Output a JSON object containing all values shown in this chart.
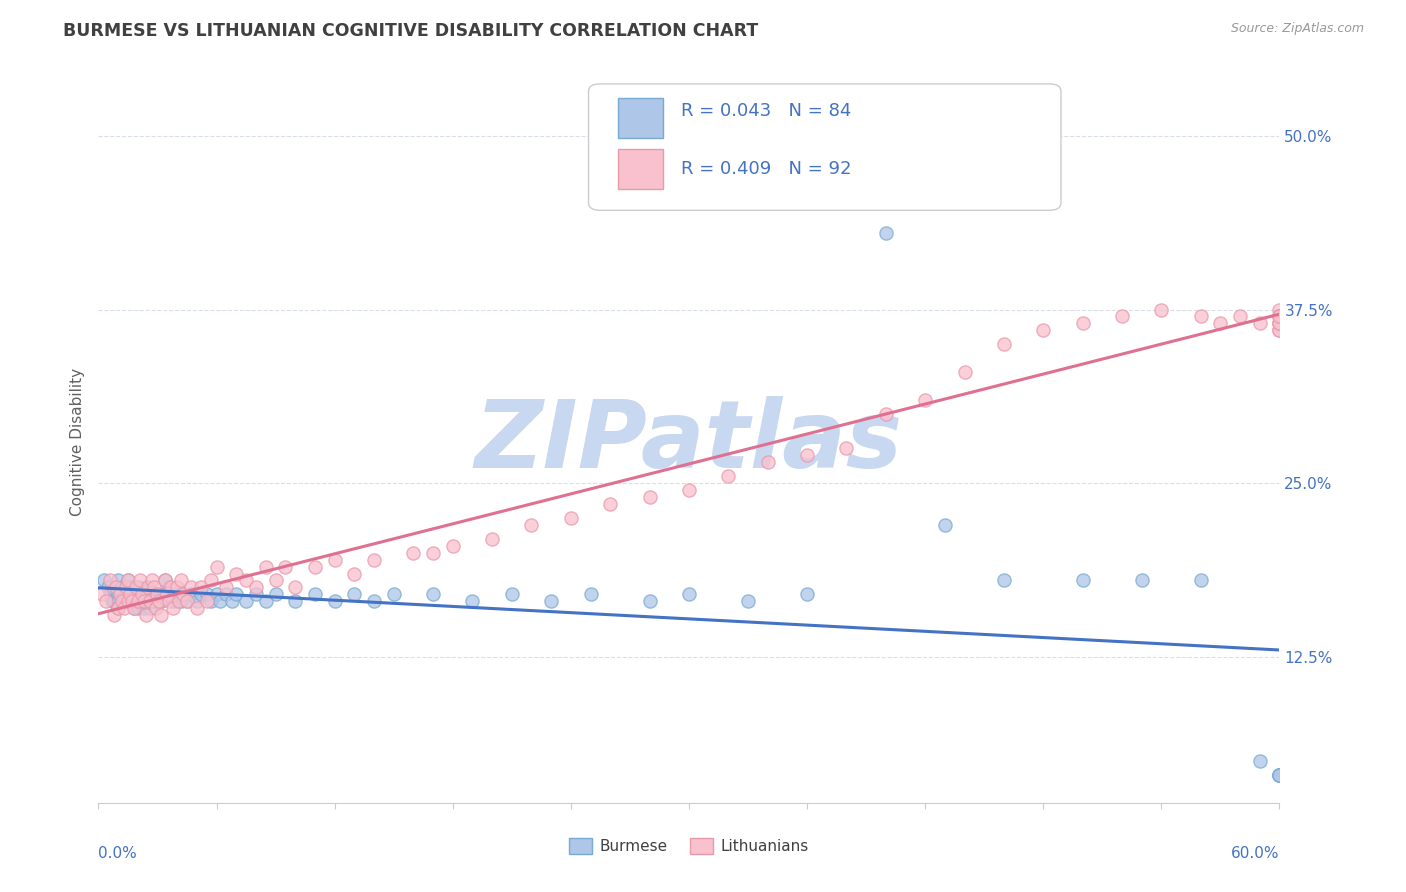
{
  "title": "BURMESE VS LITHUANIAN COGNITIVE DISABILITY CORRELATION CHART",
  "source": "Source: ZipAtlas.com",
  "ylabel": "Cognitive Disability",
  "ytick_labels": [
    "12.5%",
    "25.0%",
    "37.5%",
    "50.0%"
  ],
  "ytick_values": [
    0.125,
    0.25,
    0.375,
    0.5
  ],
  "xlim": [
    0.0,
    0.6
  ],
  "ylim": [
    0.02,
    0.54
  ],
  "burmese_R": 0.043,
  "burmese_N": 84,
  "lithuanian_R": 0.409,
  "lithuanian_N": 92,
  "burmese_color": "#aec6e8",
  "burmese_edge_color": "#7aaad0",
  "burmese_line_color": "#4472c4",
  "lithuanian_color": "#f9c0ce",
  "lithuanian_edge_color": "#e899aa",
  "lithuanian_line_color": "#e07090",
  "title_color": "#404040",
  "source_color": "#999999",
  "axis_label_color": "#606060",
  "tick_color": "#4472c4",
  "legend_text_color": "#4472c4",
  "watermark_color": "#c8d8f0",
  "watermark_text": "ZIPatlas",
  "background_color": "#ffffff",
  "grid_color": "#d8dfe8",
  "burmese_x": [
    0.003,
    0.005,
    0.006,
    0.007,
    0.008,
    0.01,
    0.01,
    0.01,
    0.01,
    0.012,
    0.013,
    0.014,
    0.015,
    0.015,
    0.016,
    0.017,
    0.018,
    0.018,
    0.019,
    0.02,
    0.02,
    0.021,
    0.022,
    0.023,
    0.024,
    0.025,
    0.025,
    0.026,
    0.027,
    0.028,
    0.029,
    0.03,
    0.031,
    0.032,
    0.034,
    0.035,
    0.036,
    0.038,
    0.039,
    0.04,
    0.041,
    0.042,
    0.043,
    0.045,
    0.047,
    0.05,
    0.052,
    0.055,
    0.057,
    0.06,
    0.062,
    0.065,
    0.068,
    0.07,
    0.075,
    0.08,
    0.085,
    0.09,
    0.1,
    0.11,
    0.12,
    0.13,
    0.14,
    0.15,
    0.17,
    0.19,
    0.21,
    0.23,
    0.25,
    0.28,
    0.3,
    0.33,
    0.36,
    0.4,
    0.43,
    0.46,
    0.5,
    0.53,
    0.56,
    0.59,
    0.6,
    0.6,
    0.6,
    0.6
  ],
  "burmese_y": [
    0.18,
    0.175,
    0.17,
    0.165,
    0.165,
    0.18,
    0.17,
    0.165,
    0.16,
    0.175,
    0.17,
    0.165,
    0.18,
    0.165,
    0.17,
    0.175,
    0.16,
    0.165,
    0.17,
    0.175,
    0.16,
    0.17,
    0.165,
    0.16,
    0.175,
    0.17,
    0.165,
    0.16,
    0.17,
    0.165,
    0.17,
    0.165,
    0.17,
    0.165,
    0.18,
    0.17,
    0.175,
    0.165,
    0.17,
    0.165,
    0.17,
    0.165,
    0.17,
    0.165,
    0.17,
    0.165,
    0.17,
    0.17,
    0.165,
    0.17,
    0.165,
    0.17,
    0.165,
    0.17,
    0.165,
    0.17,
    0.165,
    0.17,
    0.165,
    0.17,
    0.165,
    0.17,
    0.165,
    0.17,
    0.17,
    0.165,
    0.17,
    0.165,
    0.17,
    0.165,
    0.17,
    0.165,
    0.17,
    0.43,
    0.22,
    0.18,
    0.18,
    0.18,
    0.18,
    0.05,
    0.04,
    0.04,
    0.04,
    0.04
  ],
  "lithuanian_x": [
    0.002,
    0.004,
    0.006,
    0.008,
    0.009,
    0.01,
    0.011,
    0.012,
    0.013,
    0.014,
    0.015,
    0.015,
    0.016,
    0.017,
    0.018,
    0.019,
    0.02,
    0.021,
    0.022,
    0.023,
    0.024,
    0.025,
    0.026,
    0.027,
    0.028,
    0.029,
    0.03,
    0.031,
    0.032,
    0.034,
    0.035,
    0.036,
    0.037,
    0.038,
    0.04,
    0.041,
    0.042,
    0.043,
    0.045,
    0.047,
    0.05,
    0.052,
    0.055,
    0.057,
    0.06,
    0.065,
    0.07,
    0.075,
    0.08,
    0.085,
    0.09,
    0.095,
    0.1,
    0.11,
    0.12,
    0.13,
    0.14,
    0.16,
    0.17,
    0.18,
    0.2,
    0.22,
    0.24,
    0.26,
    0.28,
    0.3,
    0.32,
    0.34,
    0.36,
    0.38,
    0.4,
    0.42,
    0.44,
    0.46,
    0.48,
    0.5,
    0.52,
    0.54,
    0.56,
    0.57,
    0.58,
    0.59,
    0.6,
    0.6,
    0.6,
    0.6,
    0.6,
    0.6,
    0.6,
    0.6,
    0.6,
    0.6
  ],
  "lithuanian_y": [
    0.17,
    0.165,
    0.18,
    0.155,
    0.175,
    0.16,
    0.17,
    0.165,
    0.16,
    0.175,
    0.18,
    0.165,
    0.17,
    0.165,
    0.16,
    0.175,
    0.165,
    0.18,
    0.17,
    0.165,
    0.155,
    0.175,
    0.165,
    0.18,
    0.175,
    0.16,
    0.17,
    0.165,
    0.155,
    0.18,
    0.17,
    0.165,
    0.175,
    0.16,
    0.175,
    0.165,
    0.18,
    0.17,
    0.165,
    0.175,
    0.16,
    0.175,
    0.165,
    0.18,
    0.19,
    0.175,
    0.185,
    0.18,
    0.175,
    0.19,
    0.18,
    0.19,
    0.175,
    0.19,
    0.195,
    0.185,
    0.195,
    0.2,
    0.2,
    0.205,
    0.21,
    0.22,
    0.225,
    0.235,
    0.24,
    0.245,
    0.255,
    0.265,
    0.27,
    0.275,
    0.3,
    0.31,
    0.33,
    0.35,
    0.36,
    0.365,
    0.37,
    0.375,
    0.37,
    0.365,
    0.37,
    0.365,
    0.375,
    0.36,
    0.365,
    0.37,
    0.36,
    0.37,
    0.365,
    0.37,
    0.365,
    0.37
  ]
}
